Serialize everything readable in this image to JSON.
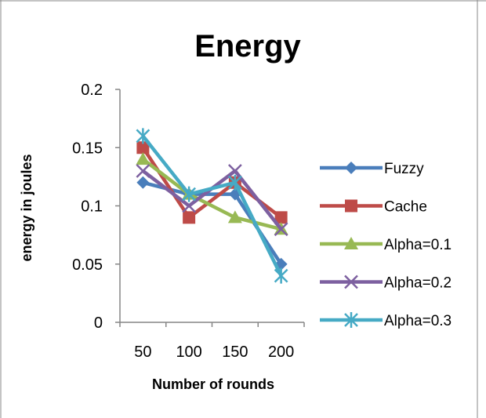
{
  "chart_data": {
    "type": "line",
    "title": "Energy",
    "xlabel": "Number of rounds",
    "ylabel": "energy in joules",
    "categories": [
      "50",
      "100",
      "150",
      "200"
    ],
    "ylim": [
      0,
      0.2
    ],
    "yticks": [
      "0",
      "0.05",
      "0.1",
      "0.15",
      "0.2"
    ],
    "grid": false,
    "legend_position": "right",
    "series": [
      {
        "name": "Fuzzy",
        "values": [
          0.12,
          0.11,
          0.11,
          0.05
        ],
        "color": "#4a7ebb",
        "marker": "diamond"
      },
      {
        "name": "Cache",
        "values": [
          0.15,
          0.09,
          0.12,
          0.09
        ],
        "color": "#be4b48",
        "marker": "square"
      },
      {
        "name": "Alpha=0.1",
        "values": [
          0.14,
          0.11,
          0.09,
          0.08
        ],
        "color": "#98b954",
        "marker": "triangle"
      },
      {
        "name": "Alpha=0.2",
        "values": [
          0.13,
          0.1,
          0.13,
          0.08
        ],
        "color": "#7d60a0",
        "marker": "x"
      },
      {
        "name": "Alpha=0.3",
        "values": [
          0.16,
          0.11,
          0.12,
          0.04
        ],
        "color": "#46aac5",
        "marker": "star"
      }
    ]
  }
}
